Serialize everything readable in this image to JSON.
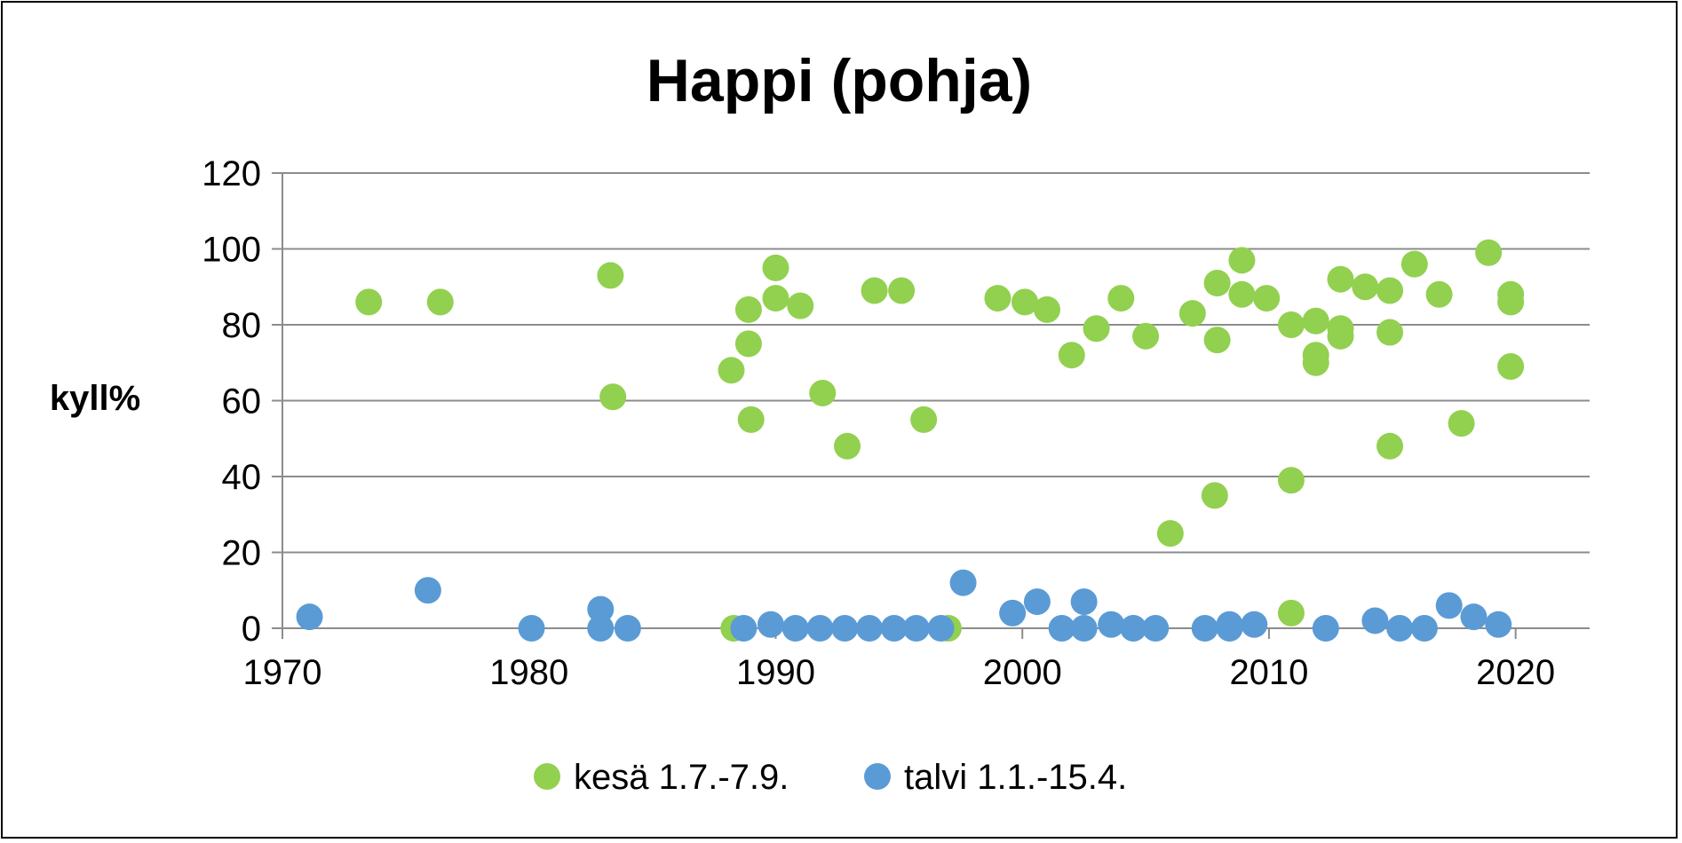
{
  "chart_data": {
    "type": "scatter",
    "title": "Happi (pohja)",
    "xlabel": "",
    "ylabel": "kyll%",
    "xlim": [
      1970,
      2023
    ],
    "ylim": [
      0,
      120
    ],
    "x_ticks": [
      1970,
      1980,
      1990,
      2000,
      2010,
      2020
    ],
    "y_ticks": [
      0,
      20,
      40,
      60,
      80,
      100,
      120
    ],
    "grid": true,
    "legend_position": "bottom",
    "series": [
      {
        "name": "kesä 1.7.-7.9.",
        "color": "#92d050",
        "points": [
          [
            1973.5,
            86
          ],
          [
            1976.4,
            86
          ],
          [
            1983.3,
            93
          ],
          [
            1983.4,
            61
          ],
          [
            1988.2,
            68
          ],
          [
            1988.9,
            84
          ],
          [
            1988.9,
            75
          ],
          [
            1989.0,
            55
          ],
          [
            1988.3,
            0
          ],
          [
            1990.0,
            95
          ],
          [
            1990.0,
            87
          ],
          [
            1991.0,
            85
          ],
          [
            1991.9,
            62
          ],
          [
            1992.9,
            48
          ],
          [
            1994.0,
            89
          ],
          [
            1995.1,
            89
          ],
          [
            1996.0,
            55
          ],
          [
            1997.0,
            0
          ],
          [
            1999.0,
            87
          ],
          [
            2000.1,
            86
          ],
          [
            2001.0,
            84
          ],
          [
            2002.0,
            72
          ],
          [
            2003.0,
            79
          ],
          [
            2004.0,
            87
          ],
          [
            2005.0,
            77
          ],
          [
            2006.0,
            25
          ],
          [
            2006.9,
            83
          ],
          [
            2007.9,
            91
          ],
          [
            2007.9,
            76
          ],
          [
            2007.8,
            35
          ],
          [
            2008.9,
            97
          ],
          [
            2008.9,
            88
          ],
          [
            2009.9,
            87
          ],
          [
            2010.9,
            80
          ],
          [
            2010.9,
            39
          ],
          [
            2010.9,
            4
          ],
          [
            2011.9,
            81
          ],
          [
            2011.9,
            72
          ],
          [
            2011.9,
            70
          ],
          [
            2012.9,
            92
          ],
          [
            2012.9,
            79
          ],
          [
            2012.9,
            77
          ],
          [
            2013.9,
            90
          ],
          [
            2014.9,
            89
          ],
          [
            2014.9,
            78
          ],
          [
            2014.9,
            48
          ],
          [
            2015.9,
            96
          ],
          [
            2016.9,
            88
          ],
          [
            2017.8,
            54
          ],
          [
            2018.9,
            99
          ],
          [
            2019.8,
            88
          ],
          [
            2019.8,
            86
          ],
          [
            2019.8,
            69
          ]
        ]
      },
      {
        "name": "talvi 1.1.-15.4.",
        "color": "#5b9bd5",
        "points": [
          [
            1971.1,
            3
          ],
          [
            1975.9,
            10
          ],
          [
            1980.1,
            0
          ],
          [
            1982.9,
            5
          ],
          [
            1982.9,
            0
          ],
          [
            1984.0,
            0
          ],
          [
            1988.7,
            0
          ],
          [
            1989.8,
            1
          ],
          [
            1990.8,
            0
          ],
          [
            1991.8,
            0
          ],
          [
            1992.8,
            0
          ],
          [
            1993.8,
            0
          ],
          [
            1994.8,
            0
          ],
          [
            1995.7,
            0
          ],
          [
            1996.7,
            0
          ],
          [
            1997.6,
            12
          ],
          [
            1999.6,
            4
          ],
          [
            2000.6,
            7
          ],
          [
            2001.6,
            0
          ],
          [
            2002.5,
            7
          ],
          [
            2002.5,
            0
          ],
          [
            2003.6,
            1
          ],
          [
            2004.5,
            0
          ],
          [
            2005.4,
            0
          ],
          [
            2007.4,
            0
          ],
          [
            2008.4,
            1
          ],
          [
            2008.4,
            0
          ],
          [
            2009.4,
            1
          ],
          [
            2012.3,
            0
          ],
          [
            2014.3,
            2
          ],
          [
            2015.3,
            0
          ],
          [
            2016.3,
            0
          ],
          [
            2017.3,
            6
          ],
          [
            2018.3,
            3
          ],
          [
            2019.3,
            1
          ]
        ]
      }
    ]
  }
}
